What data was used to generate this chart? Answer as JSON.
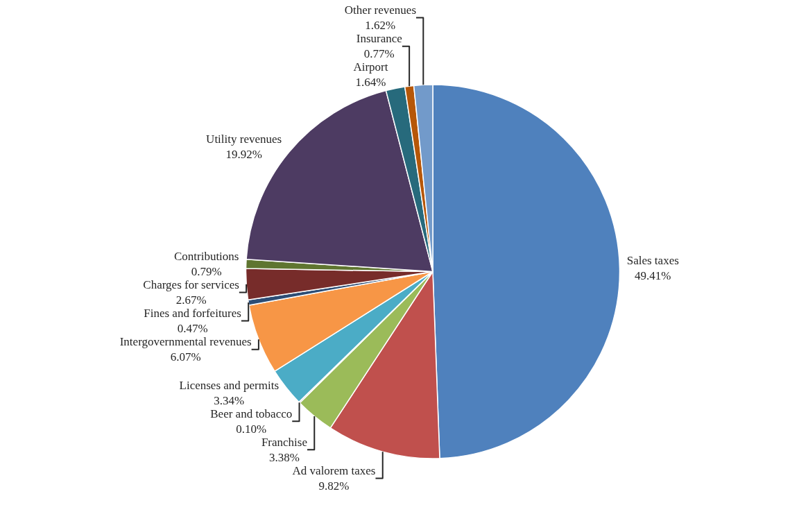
{
  "chart_data": {
    "type": "pie",
    "categories": [
      "Sales taxes",
      "Ad valorem taxes",
      "Franchise",
      "Beer and tobacco",
      "Licenses and permits",
      "Intergovernmental revenues",
      "Fines and forfeitures",
      "Charges for services",
      "Contributions",
      "Utility revenues",
      "Airport",
      "Insurance",
      "Other revenues"
    ],
    "values": [
      49.41,
      9.82,
      3.38,
      0.1,
      3.34,
      6.07,
      0.47,
      2.67,
      0.79,
      19.92,
      1.64,
      0.77,
      1.62
    ],
    "value_labels": [
      "49.41%",
      "9.82%",
      "3.38%",
      "0.10%",
      "3.34%",
      "6.07%",
      "0.47%",
      "2.67%",
      "0.79%",
      "19.92%",
      "1.64%",
      "0.77%",
      "1.62%"
    ],
    "colors": [
      "#4f81bd",
      "#c0504d",
      "#9bbb59",
      "#8064a2",
      "#4bacc6",
      "#f79646",
      "#2c4d75",
      "#772c2a",
      "#5f7530",
      "#4d3b62",
      "#276a7c",
      "#b65708",
      "#729aca"
    ],
    "legend": false
  }
}
